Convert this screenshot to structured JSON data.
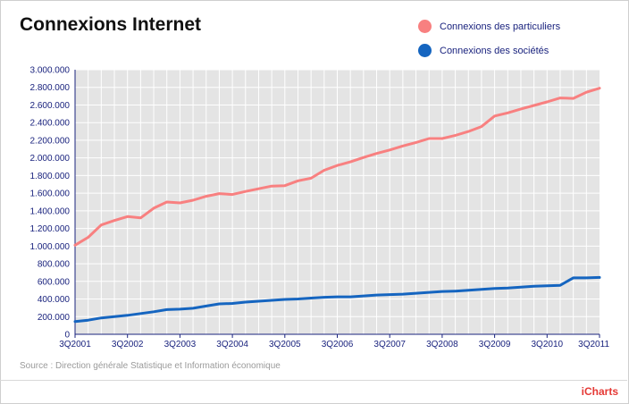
{
  "title": "Connexions Internet",
  "legend": [
    {
      "label": "Connexions des particuliers",
      "color": "#f88080"
    },
    {
      "label": "Connexions des sociétés",
      "color": "#1565c0"
    }
  ],
  "source": "Source : Direction générale Statistique et Information économique",
  "brand": "iCharts",
  "chart_data": {
    "type": "line",
    "title": "Connexions Internet",
    "xlabel": "",
    "ylabel": "",
    "ylim": [
      0,
      3000000
    ],
    "yticks": [
      0,
      200000,
      400000,
      600000,
      800000,
      1000000,
      1200000,
      1400000,
      1600000,
      1800000,
      2000000,
      2200000,
      2400000,
      2600000,
      2800000,
      3000000
    ],
    "ytick_labels": [
      "0",
      "200.000",
      "400.000",
      "600.000",
      "800.000",
      "1.000.000",
      "1.200.000",
      "1.400.000",
      "1.600.000",
      "1.800.000",
      "2.000.000",
      "2.200.000",
      "2.400.000",
      "2.600.000",
      "2.800.000",
      "3.000.000"
    ],
    "xtick_labels": [
      "3Q2001",
      "3Q2002",
      "3Q2003",
      "3Q2004",
      "3Q2005",
      "3Q2006",
      "3Q2007",
      "3Q2008",
      "3Q2009",
      "3Q2010",
      "3Q2011"
    ],
    "categories": [
      "3Q2001",
      "4Q2001",
      "1Q2002",
      "2Q2002",
      "3Q2002",
      "4Q2002",
      "1Q2003",
      "2Q2003",
      "3Q2003",
      "4Q2003",
      "1Q2004",
      "2Q2004",
      "3Q2004",
      "4Q2004",
      "1Q2005",
      "2Q2005",
      "3Q2005",
      "4Q2005",
      "1Q2006",
      "2Q2006",
      "3Q2006",
      "4Q2006",
      "1Q2007",
      "2Q2007",
      "3Q2007",
      "4Q2007",
      "1Q2008",
      "2Q2008",
      "3Q2008",
      "4Q2008",
      "1Q2009",
      "2Q2009",
      "3Q2009",
      "4Q2009",
      "1Q2010",
      "2Q2010",
      "3Q2010",
      "4Q2010",
      "1Q2011",
      "2Q2011",
      "3Q2011"
    ],
    "grid": true,
    "legend_position": "top-right",
    "series": [
      {
        "name": "Connexions des particuliers",
        "color": "#f88080",
        "values": [
          1010000,
          1100000,
          1240000,
          1290000,
          1335000,
          1320000,
          1430000,
          1500000,
          1490000,
          1520000,
          1565000,
          1595000,
          1585000,
          1620000,
          1650000,
          1680000,
          1685000,
          1740000,
          1770000,
          1860000,
          1915000,
          1955000,
          2005000,
          2050000,
          2090000,
          2135000,
          2175000,
          2220000,
          2220000,
          2255000,
          2300000,
          2355000,
          2475000,
          2510000,
          2555000,
          2595000,
          2635000,
          2680000,
          2675000,
          2745000,
          2790000
        ]
      },
      {
        "name": "Connexions des sociétés",
        "color": "#1565c0",
        "values": [
          145000,
          160000,
          185000,
          200000,
          215000,
          235000,
          255000,
          280000,
          285000,
          295000,
          320000,
          345000,
          350000,
          365000,
          375000,
          385000,
          395000,
          400000,
          410000,
          420000,
          425000,
          425000,
          435000,
          445000,
          450000,
          455000,
          465000,
          475000,
          485000,
          490000,
          500000,
          510000,
          520000,
          525000,
          535000,
          545000,
          550000,
          555000,
          640000,
          640000,
          645000
        ]
      }
    ]
  }
}
